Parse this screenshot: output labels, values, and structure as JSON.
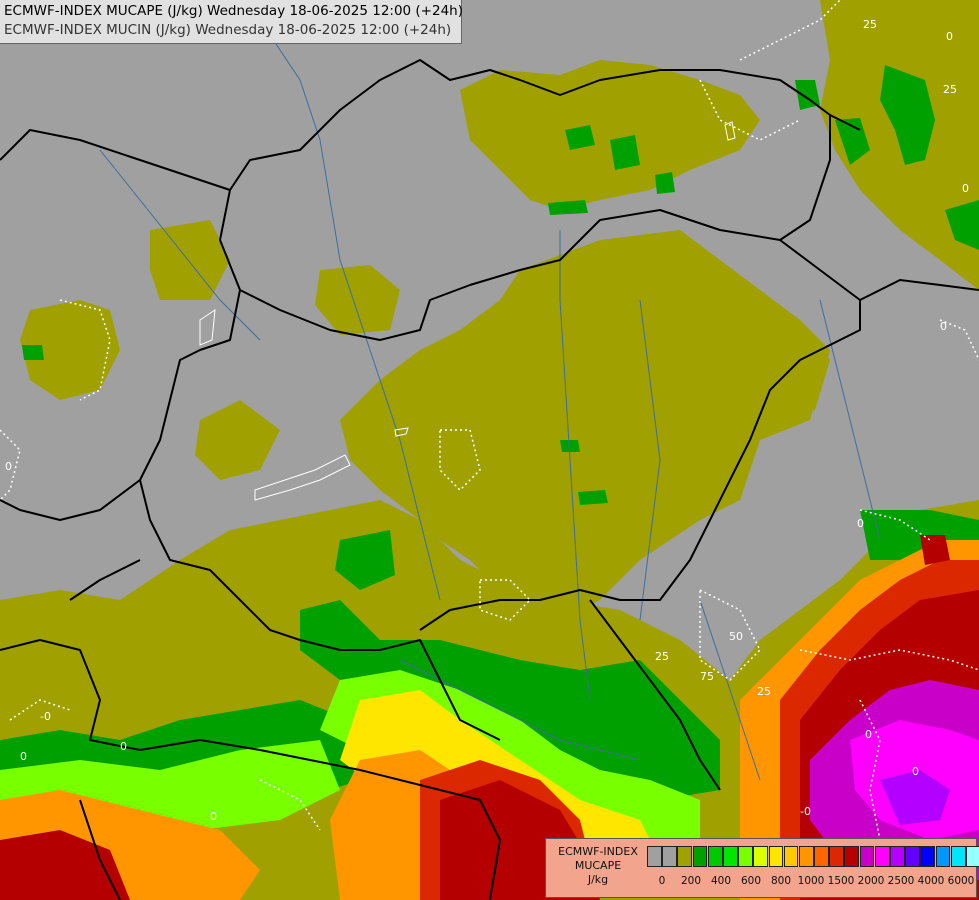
{
  "header": {
    "line1": "ECMWF-INDEX MUCAPE (J/kg) Wednesday 18-06-2025 12:00 (+24h)",
    "line2": "ECMWF-INDEX MUCIN (J/kg) Wednesday 18-06-2025 12:00 (+24h)"
  },
  "legend": {
    "title_line1": "ECMWF-INDEX",
    "title_line2": "MUCAPE",
    "unit": "J/kg",
    "colors": [
      "#a0a0a0",
      "#a0a0a0",
      "#a0a000",
      "#00a000",
      "#00c800",
      "#00e600",
      "#78ff00",
      "#dcff00",
      "#ffe600",
      "#ffc800",
      "#ff9600",
      "#ff6400",
      "#dc2800",
      "#b40000",
      "#c800c8",
      "#ff00ff",
      "#b400ff",
      "#6400ff",
      "#0000ff",
      "#0096ff",
      "#00e6ff",
      "#96ffff",
      "#ffffff"
    ],
    "ticks": [
      "0",
      "200",
      "400",
      "600",
      "800",
      "1000",
      "1500",
      "2000",
      "2500",
      "4000",
      "6000"
    ]
  },
  "cin_labels": [
    "25",
    "0",
    "25",
    "0",
    "0",
    "0",
    "50",
    "25",
    "0",
    "0",
    "-0",
    "25",
    "75",
    "-0",
    "0",
    "-0",
    "0",
    "0",
    "0"
  ],
  "colors": {
    "background": "#a0a0a0",
    "cape_low": "#a0a000",
    "cape_green": "#00a000",
    "borders": "#000000",
    "rivers": "#3c6ea0",
    "cin_contour": "#ffffff"
  }
}
